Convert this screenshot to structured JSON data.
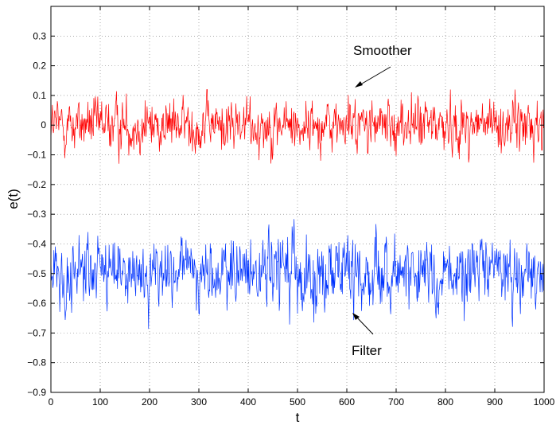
{
  "chart_data": {
    "type": "line",
    "xlabel": "t",
    "ylabel": "e(t)",
    "xlim": [
      0,
      1000
    ],
    "ylim": [
      -0.9,
      0.4
    ],
    "xticks": [
      0,
      100,
      200,
      300,
      400,
      500,
      600,
      700,
      800,
      900,
      1000
    ],
    "yticks": [
      -0.9,
      -0.8,
      -0.7,
      -0.6,
      -0.5,
      -0.4,
      -0.3,
      -0.2,
      -0.1,
      0,
      0.1,
      0.2,
      0.3
    ],
    "ytick_labels": [
      "−0.9",
      "−0.8",
      "−0.7",
      "−0.6",
      "−0.5",
      "−0.4",
      "−0.3",
      "−0.2",
      "−0.1",
      "0",
      "0.1",
      "0.2",
      "0.3"
    ],
    "grid": true,
    "series": [
      {
        "name": "Smoother",
        "color": "#ff0000",
        "mean": 0.0,
        "std": 0.045,
        "min": -0.13,
        "max": 0.12,
        "n": 1000
      },
      {
        "name": "Filter",
        "color": "#0033ff",
        "mean": -0.5,
        "std": 0.06,
        "min": -0.72,
        "max": -0.29,
        "n": 1000
      }
    ],
    "annotations": [
      {
        "text": "Smoother",
        "arrow_to": [
          617,
          0.12
        ]
      },
      {
        "text": "Filter",
        "arrow_to": [
          613,
          -0.635
        ]
      }
    ]
  }
}
